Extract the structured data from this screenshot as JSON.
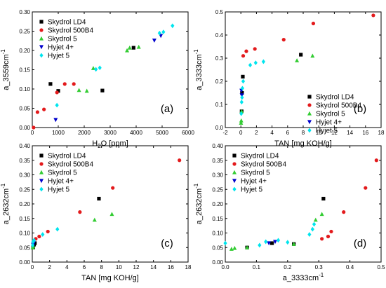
{
  "colors": {
    "Skydrol LD4": "#000000",
    "Skydrol 500B4": "#e31a1c",
    "Skydrol 5": "#33cc33",
    "Hyjet 4+": "#0000cc",
    "Hyjet 5": "#00e5ee"
  },
  "markers": {
    "Skydrol LD4": "square",
    "Skydrol 500B4": "circle",
    "Skydrol 5": "triangle-up",
    "Hyjet 4+": "triangle-down",
    "Hyjet 5": "diamond"
  },
  "chart_data": [
    {
      "type": "scatter",
      "panel_label": "(a)",
      "xlabel_main": "H",
      "xlabel_sub": "2",
      "xlabel_rest": "O [ppm]",
      "ylabel_main": "a_3559cm",
      "ylabel_sup": "-1",
      "xlim": [
        0,
        6000
      ],
      "ylim": [
        0,
        0.3
      ],
      "x_ticks": [
        "0",
        "1000",
        "2000",
        "3000",
        "4000",
        "5000",
        "6000"
      ],
      "y_ticks": [
        "0.00",
        "0.05",
        "0.10",
        "0.15",
        "0.20",
        "0.25",
        "0.30"
      ],
      "legend_position": "top-left",
      "series": [
        {
          "name": "Skydrol LD4",
          "x": [
            700,
            1000,
            2700,
            3900
          ],
          "y": [
            0.113,
            0.095,
            0.096,
            0.207
          ]
        },
        {
          "name": "Skydrol 500B4",
          "x": [
            50,
            200,
            450,
            950,
            1250,
            1600
          ],
          "y": [
            0.0,
            0.04,
            0.047,
            0.091,
            0.113,
            0.113
          ]
        },
        {
          "name": "Skydrol 5",
          "x": [
            1800,
            2100,
            2350,
            3650,
            3750,
            4100
          ],
          "y": [
            0.097,
            0.095,
            0.154,
            0.2,
            0.207,
            0.209
          ]
        },
        {
          "name": "Hyjet 4+",
          "x": [
            900,
            4700,
            4950
          ],
          "y": [
            0.02,
            0.226,
            0.238
          ]
        },
        {
          "name": "Hyjet 5",
          "x": [
            950,
            2450,
            2600,
            4900,
            5050,
            5400
          ],
          "y": [
            0.058,
            0.151,
            0.155,
            0.245,
            0.248,
            0.264
          ]
        }
      ]
    },
    {
      "type": "scatter",
      "panel_label": "(b)",
      "xlabel_main": "TAN [mg KOH/g]",
      "ylabel_main": "a_3333cm",
      "ylabel_sup": "-1",
      "xlim": [
        -2,
        18
      ],
      "ylim": [
        0,
        0.5
      ],
      "x_ticks": [
        "-2",
        "0",
        "2",
        "4",
        "6",
        "8",
        "10",
        "12",
        "14",
        "16",
        "18"
      ],
      "y_ticks": [
        "0.0",
        "0.1",
        "0.2",
        "0.3",
        "0.4",
        "0.5"
      ],
      "legend_position": "bottom-right",
      "series": [
        {
          "name": "Skydrol LD4",
          "x": [
            0.1,
            0.15,
            0.25,
            7.7
          ],
          "y": [
            0.07,
            0.15,
            0.22,
            0.315
          ]
        },
        {
          "name": "Skydrol 500B4",
          "x": [
            0.3,
            0.7,
            1.8,
            5.5,
            9.3,
            17.0
          ],
          "y": [
            0.31,
            0.33,
            0.34,
            0.38,
            0.45,
            0.485
          ]
        },
        {
          "name": "Skydrol 5",
          "x": [
            0.02,
            0.05,
            0.1,
            7.2,
            9.2
          ],
          "y": [
            0.02,
            0.03,
            0.07,
            0.29,
            0.31
          ]
        },
        {
          "name": "Hyjet 4+",
          "x": [
            0.08,
            0.12
          ],
          "y": [
            0.16,
            0.14
          ]
        },
        {
          "name": "Hyjet 5",
          "x": [
            0.05,
            0.1,
            0.15,
            0.2,
            0.3,
            1.2,
            1.9,
            2.9
          ],
          "y": [
            0.06,
            0.11,
            0.13,
            0.17,
            0.2,
            0.27,
            0.28,
            0.285
          ]
        }
      ]
    },
    {
      "type": "scatter",
      "panel_label": "(c)",
      "xlabel_main": "TAN [mg KOH/g]",
      "ylabel_main": "a_2632cm",
      "ylabel_sup": "-1",
      "xlim": [
        0,
        18
      ],
      "ylim": [
        0,
        0.4
      ],
      "x_ticks": [
        "0",
        "2",
        "4",
        "6",
        "8",
        "10",
        "12",
        "14",
        "16",
        "18"
      ],
      "y_ticks": [
        "0.00",
        "0.05",
        "0.10",
        "0.15",
        "0.20",
        "0.25",
        "0.30",
        "0.35",
        "0.40"
      ],
      "legend_position": "top-left",
      "series": [
        {
          "name": "Skydrol LD4",
          "x": [
            0.1,
            0.2,
            0.3,
            7.7
          ],
          "y": [
            0.05,
            0.06,
            0.065,
            0.218
          ]
        },
        {
          "name": "Skydrol 500B4",
          "x": [
            0.4,
            0.8,
            1.8,
            5.5,
            9.3,
            17.0
          ],
          "y": [
            0.08,
            0.088,
            0.105,
            0.172,
            0.255,
            0.35
          ]
        },
        {
          "name": "Skydrol 5",
          "x": [
            0.05,
            0.1,
            7.2,
            9.2
          ],
          "y": [
            0.05,
            0.055,
            0.145,
            0.165
          ]
        },
        {
          "name": "Hyjet 4+",
          "x": [
            0.1,
            0.15
          ],
          "y": [
            0.06,
            0.065
          ]
        },
        {
          "name": "Hyjet 5",
          "x": [
            0.05,
            0.1,
            0.2,
            1.2,
            2.9
          ],
          "y": [
            0.058,
            0.07,
            0.075,
            0.095,
            0.113
          ]
        }
      ]
    },
    {
      "type": "scatter",
      "panel_label": "(d)",
      "xlabel_main": "a_3333cm",
      "xlabel_sup": "-1",
      "ylabel_main": "a_2632cm",
      "ylabel_sup": "-1",
      "xlim": [
        0.0,
        0.5
      ],
      "ylim": [
        0.0,
        0.4
      ],
      "x_ticks": [
        "0.0",
        "0.1",
        "0.2",
        "0.3",
        "0.4",
        "0.5"
      ],
      "y_ticks": [
        "0.00",
        "0.05",
        "0.10",
        "0.15",
        "0.20",
        "0.25",
        "0.30",
        "0.35",
        "0.40"
      ],
      "legend_position": "top-left",
      "series": [
        {
          "name": "Skydrol LD4",
          "x": [
            0.07,
            0.15,
            0.22,
            0.315
          ],
          "y": [
            0.05,
            0.065,
            0.062,
            0.218
          ]
        },
        {
          "name": "Skydrol 500B4",
          "x": [
            0.31,
            0.33,
            0.34,
            0.38,
            0.45,
            0.485
          ],
          "y": [
            0.08,
            0.088,
            0.105,
            0.172,
            0.255,
            0.35
          ]
        },
        {
          "name": "Skydrol 5",
          "x": [
            0.02,
            0.03,
            0.07,
            0.22,
            0.29,
            0.31
          ],
          "y": [
            0.045,
            0.048,
            0.05,
            0.062,
            0.145,
            0.165
          ]
        },
        {
          "name": "Hyjet 4+",
          "x": [
            0.14,
            0.16
          ],
          "y": [
            0.065,
            0.07
          ]
        },
        {
          "name": "Hyjet 5",
          "x": [
            0.0,
            0.11,
            0.13,
            0.17,
            0.2,
            0.27,
            0.28,
            0.285
          ],
          "y": [
            0.065,
            0.058,
            0.07,
            0.075,
            0.068,
            0.095,
            0.113,
            0.13
          ]
        }
      ]
    }
  ]
}
